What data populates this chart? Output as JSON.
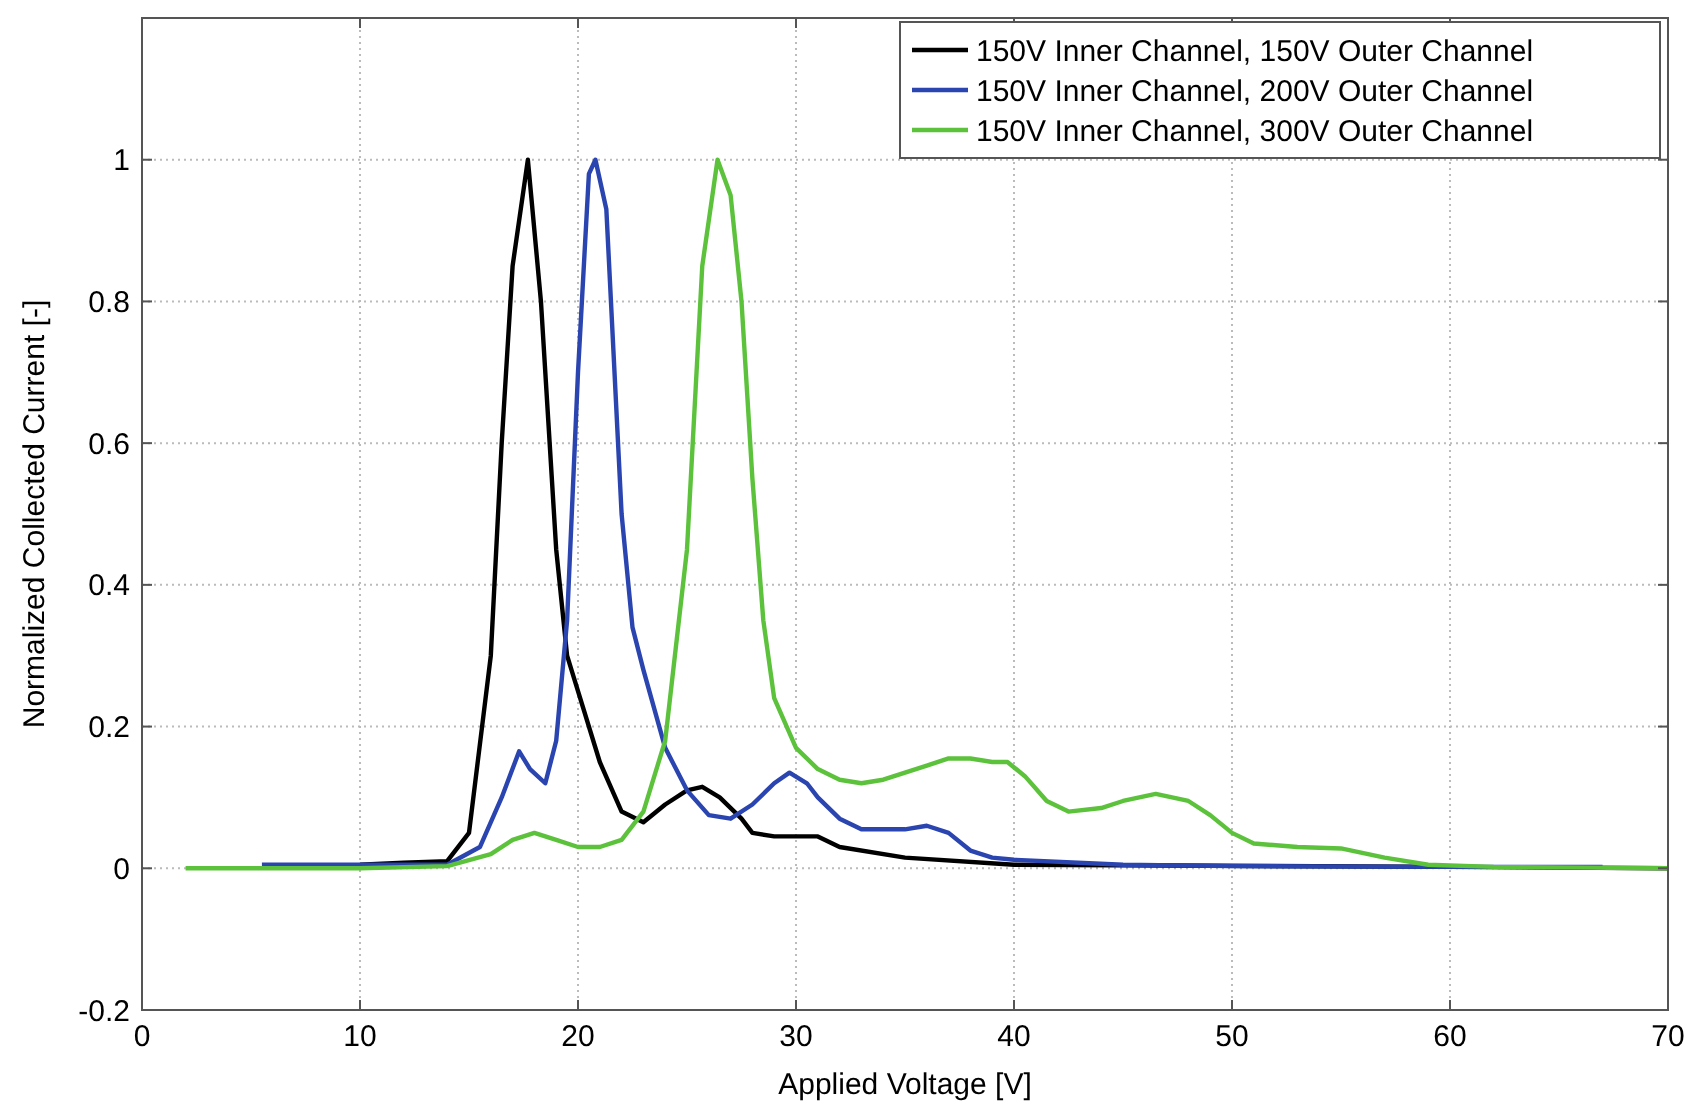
{
  "chart_data": {
    "type": "line",
    "xlabel": "Applied Voltage [V]",
    "ylabel": "Normalized Collected Current [-]",
    "xlim": [
      0,
      70
    ],
    "xticks": [
      0,
      10,
      20,
      30,
      40,
      50,
      60,
      70
    ],
    "ylim": [
      -0.2,
      1.2
    ],
    "yticks": [
      -0.2,
      0,
      0.2,
      0.4,
      0.6,
      0.8,
      1
    ],
    "grid": true,
    "legend": "top right",
    "line_style": "solid",
    "series": [
      {
        "name": "150V Inner Channel, 150V Outer Channel",
        "color": "#000000",
        "x": [
          10,
          12,
          14,
          15,
          16,
          16.5,
          17,
          17.7,
          18.3,
          19,
          19.5,
          20,
          21,
          22,
          23,
          24,
          25,
          25.7,
          26.5,
          27.5,
          28,
          29,
          31,
          32,
          35,
          40,
          60,
          70
        ],
        "values": [
          0.005,
          0.008,
          0.01,
          0.05,
          0.3,
          0.6,
          0.85,
          1,
          0.8,
          0.45,
          0.3,
          0.25,
          0.15,
          0.08,
          0.065,
          0.09,
          0.11,
          0.115,
          0.1,
          0.07,
          0.05,
          0.045,
          0.045,
          0.03,
          0.015,
          0.005,
          0.002,
          0
        ]
      },
      {
        "name": "150V Inner Channel, 200V Outer Channel",
        "color": "#2a44b0",
        "x": [
          5.5,
          10,
          14,
          15.5,
          16.5,
          17.3,
          17.8,
          18.5,
          19,
          19.5,
          20,
          20.5,
          20.8,
          21.3,
          22,
          22.5,
          23,
          24,
          25,
          26,
          27,
          28,
          29,
          29.7,
          30.5,
          31,
          32,
          33,
          35,
          36,
          37,
          38,
          39,
          40,
          45,
          50,
          60,
          67
        ],
        "values": [
          0.005,
          0.005,
          0.005,
          0.03,
          0.1,
          0.165,
          0.14,
          0.12,
          0.18,
          0.35,
          0.7,
          0.98,
          1,
          0.93,
          0.5,
          0.34,
          0.28,
          0.17,
          0.11,
          0.075,
          0.07,
          0.09,
          0.12,
          0.135,
          0.12,
          0.1,
          0.07,
          0.055,
          0.055,
          0.06,
          0.05,
          0.025,
          0.015,
          0.012,
          0.005,
          0.003,
          0.002,
          0.002
        ]
      },
      {
        "name": "150V Inner Channel, 300V Outer Channel",
        "color": "#5cc23c",
        "x": [
          2,
          10,
          14,
          16,
          17,
          18,
          19,
          20,
          21,
          22,
          23,
          24,
          25,
          25.7,
          26.4,
          27,
          27.5,
          28,
          28.5,
          29,
          30,
          31,
          32,
          33,
          34,
          35,
          36,
          37,
          38,
          39,
          39.7,
          40.5,
          41.5,
          42.5,
          44,
          45,
          46.5,
          48,
          49,
          50,
          51,
          53,
          55,
          57,
          59,
          62,
          70
        ],
        "values": [
          0,
          0,
          0.003,
          0.02,
          0.04,
          0.05,
          0.04,
          0.03,
          0.03,
          0.04,
          0.08,
          0.18,
          0.45,
          0.85,
          1,
          0.95,
          0.8,
          0.55,
          0.35,
          0.24,
          0.17,
          0.14,
          0.125,
          0.12,
          0.125,
          0.135,
          0.145,
          0.155,
          0.155,
          0.15,
          0.15,
          0.13,
          0.095,
          0.08,
          0.085,
          0.095,
          0.105,
          0.095,
          0.075,
          0.05,
          0.035,
          0.03,
          0.028,
          0.015,
          0.005,
          0.002,
          0
        ]
      }
    ]
  }
}
